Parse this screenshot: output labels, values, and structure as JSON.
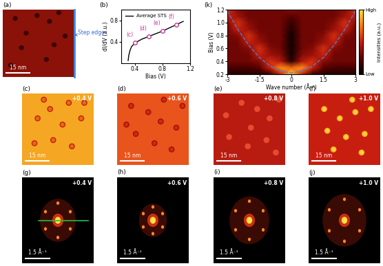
{
  "chart_data": [
    {
      "type": "line",
      "title": "(b)",
      "xlabel": "Bias (V)",
      "ylabel": "dI/dV (a.u.)",
      "x": [
        0.3,
        0.31,
        0.33,
        0.35,
        0.4,
        0.5,
        0.6,
        0.7,
        0.8,
        0.9,
        1.0,
        1.1
      ],
      "series": [
        {
          "name": "Average STS",
          "color": "#000000",
          "values": [
            0.05,
            0.15,
            0.25,
            0.31,
            0.38,
            0.45,
            0.5,
            0.55,
            0.6,
            0.66,
            0.72,
            0.78
          ]
        }
      ],
      "annotations": [
        {
          "text": "(c)",
          "x": 0.4,
          "y": 0.38
        },
        {
          "text": "(d)",
          "x": 0.6,
          "y": 0.5
        },
        {
          "text": "(e)",
          "x": 0.8,
          "y": 0.6
        },
        {
          "text": "(f)",
          "x": 1.0,
          "y": 0.72
        }
      ],
      "xlim": [
        0.2,
        1.2
      ],
      "ylim": [
        0,
        1.0
      ],
      "xticks": [
        0.4,
        0.8,
        1.2
      ],
      "yticks": [
        0.4,
        0.8
      ],
      "legend": "upper left"
    },
    {
      "type": "heatmap",
      "title": "(k)",
      "xlabel": "Wave number (Å⁻¹)",
      "ylabel": "Bias (V)",
      "x": [
        -3,
        -2.5,
        -2,
        -1.5,
        -1,
        -0.5,
        0,
        0.5,
        1,
        1.5,
        2,
        2.5,
        3
      ],
      "y": [
        0.2,
        0.3,
        0.4,
        0.5,
        0.6,
        0.7,
        0.8,
        0.9,
        1.0,
        1.1,
        1.2
      ],
      "cells": [
        [
          0.1,
          0.1,
          0.1,
          0.1,
          0.15,
          0.5,
          0.95,
          0.5,
          0.15,
          0.1,
          0.1,
          0.1,
          0.1
        ],
        [
          0.2,
          0.2,
          0.2,
          0.25,
          0.5,
          0.8,
          0.7,
          0.8,
          0.5,
          0.25,
          0.2,
          0.2,
          0.2
        ],
        [
          0.3,
          0.3,
          0.3,
          0.35,
          0.55,
          0.45,
          0.1,
          0.45,
          0.55,
          0.35,
          0.3,
          0.3,
          0.3
        ],
        [
          0.3,
          0.3,
          0.3,
          0.5,
          0.4,
          0.35,
          0.05,
          0.35,
          0.4,
          0.5,
          0.3,
          0.3,
          0.3
        ],
        [
          0.3,
          0.3,
          0.35,
          0.55,
          0.35,
          0.3,
          0.05,
          0.3,
          0.35,
          0.55,
          0.35,
          0.3,
          0.3
        ],
        [
          0.3,
          0.3,
          0.5,
          0.4,
          0.3,
          0.3,
          0.05,
          0.3,
          0.3,
          0.4,
          0.5,
          0.3,
          0.3
        ],
        [
          0.3,
          0.35,
          0.55,
          0.35,
          0.3,
          0.3,
          0.05,
          0.3,
          0.3,
          0.35,
          0.55,
          0.35,
          0.3
        ],
        [
          0.3,
          0.5,
          0.4,
          0.3,
          0.3,
          0.3,
          0.1,
          0.3,
          0.3,
          0.3,
          0.4,
          0.5,
          0.3
        ],
        [
          0.35,
          0.55,
          0.35,
          0.3,
          0.3,
          0.3,
          0.15,
          0.3,
          0.3,
          0.3,
          0.35,
          0.55,
          0.35
        ],
        [
          0.5,
          0.4,
          0.3,
          0.3,
          0.3,
          0.3,
          0.25,
          0.3,
          0.3,
          0.3,
          0.3,
          0.4,
          0.5
        ],
        [
          0.55,
          0.35,
          0.3,
          0.3,
          0.3,
          0.3,
          0.35,
          0.3,
          0.3,
          0.3,
          0.3,
          0.35,
          0.55
        ]
      ],
      "fit": {
        "x": [
          -3,
          -2.5,
          -2,
          -1.5,
          -1,
          -0.5,
          0,
          0.5,
          1,
          1.5,
          2,
          2.5,
          3
        ],
        "y": [
          1.18,
          0.89,
          0.65,
          0.46,
          0.33,
          0.25,
          0.22,
          0.25,
          0.33,
          0.46,
          0.65,
          0.89,
          1.18
        ],
        "color": "#4a7fd4",
        "line_style": "dashed"
      },
      "xlim": [
        -3,
        3
      ],
      "ylim": [
        0.2,
        1.2
      ],
      "xticks": [
        -3,
        -1.5,
        0,
        1.5,
        3
      ],
      "yticks": [
        0.2,
        0.4,
        0.6,
        0.8,
        1.0,
        1.2
      ],
      "colorbar": {
        "label": "Intensities (a.u.)",
        "range": [
          0,
          1
        ],
        "ticks": [
          {
            "value": 0,
            "label": "Low"
          },
          {
            "value": 1,
            "label": "High"
          }
        ]
      }
    }
  ],
  "topography": {
    "title": "(a)",
    "step_edge": "Step edge",
    "size_nm": 46,
    "scale_bar": {
      "length": 15,
      "label": "15 nm"
    },
    "defects": [
      [
        8,
        40
      ],
      [
        15,
        30
      ],
      [
        22,
        42
      ],
      [
        30,
        38
      ],
      [
        36,
        44
      ],
      [
        12,
        20
      ],
      [
        28,
        12
      ],
      [
        40,
        28
      ],
      [
        5,
        8
      ],
      [
        33,
        22
      ]
    ]
  },
  "images": [
    {
      "title": "(c)",
      "bias": "+0.4 V",
      "size_nm": 46,
      "scale_bar": {
        "length": 15,
        "label": "15 nm"
      },
      "defects": [
        [
          10,
          30
        ],
        [
          18,
          36
        ],
        [
          26,
          26
        ],
        [
          8,
          14
        ],
        [
          20,
          16
        ],
        [
          32,
          12
        ],
        [
          38,
          30
        ],
        [
          40,
          40
        ],
        [
          14,
          42
        ],
        [
          30,
          40
        ]
      ]
    },
    {
      "title": "(d)",
      "bias": "+0.6 V",
      "size_nm": 46,
      "scale_bar": {
        "length": 15,
        "label": "15 nm"
      },
      "defects": [
        [
          9,
          38
        ],
        [
          20,
          34
        ],
        [
          28,
          28
        ],
        [
          12,
          20
        ],
        [
          24,
          14
        ],
        [
          35,
          10
        ],
        [
          38,
          24
        ],
        [
          42,
          38
        ],
        [
          30,
          42
        ],
        [
          6,
          26
        ]
      ]
    },
    {
      "title": "(e)",
      "bias": "+0.8 V",
      "size_nm": 46,
      "scale_bar": {
        "length": 15,
        "label": "15 nm"
      },
      "defects": [
        [
          8,
          32
        ],
        [
          18,
          40
        ],
        [
          24,
          24
        ],
        [
          10,
          18
        ],
        [
          22,
          12
        ],
        [
          34,
          16
        ],
        [
          36,
          30
        ],
        [
          42,
          42
        ],
        [
          28,
          36
        ],
        [
          40,
          8
        ]
      ]
    },
    {
      "title": "(f)",
      "bias": "+1.0 V",
      "size_nm": 46,
      "scale_bar": {
        "length": 15,
        "label": "15 nm"
      },
      "defects": [
        [
          10,
          36
        ],
        [
          20,
          30
        ],
        [
          30,
          34
        ],
        [
          12,
          22
        ],
        [
          24,
          18
        ],
        [
          36,
          20
        ],
        [
          40,
          36
        ],
        [
          28,
          42
        ],
        [
          16,
          10
        ],
        [
          34,
          8
        ]
      ]
    }
  ],
  "fft_images": [
    {
      "title": "(g)",
      "bias": "+0.4 V",
      "size": 4.5,
      "scale_bar": {
        "length": 1.5,
        "label": "1.5 Å⁻¹"
      },
      "ring_radius": 0.9,
      "cut_line": [
        -1.2,
        1.9
      ]
    },
    {
      "title": "(h)",
      "bias": "+0.6 V",
      "size": 4.5,
      "scale_bar": {
        "length": 1.5,
        "label": "1.5 Å⁻¹"
      },
      "ring_radius": 0.7
    },
    {
      "title": "(i)",
      "bias": "+0.8 V",
      "size": 4.5,
      "scale_bar": {
        "length": 1.5,
        "label": "1.5 Å⁻¹"
      },
      "ring_radius": 1.0
    },
    {
      "title": "(j)",
      "bias": "+1.0 V",
      "size": 4.5,
      "scale_bar": {
        "length": 1.5,
        "label": "1.5 Å⁻¹"
      },
      "ring_radius": 1.1
    }
  ]
}
